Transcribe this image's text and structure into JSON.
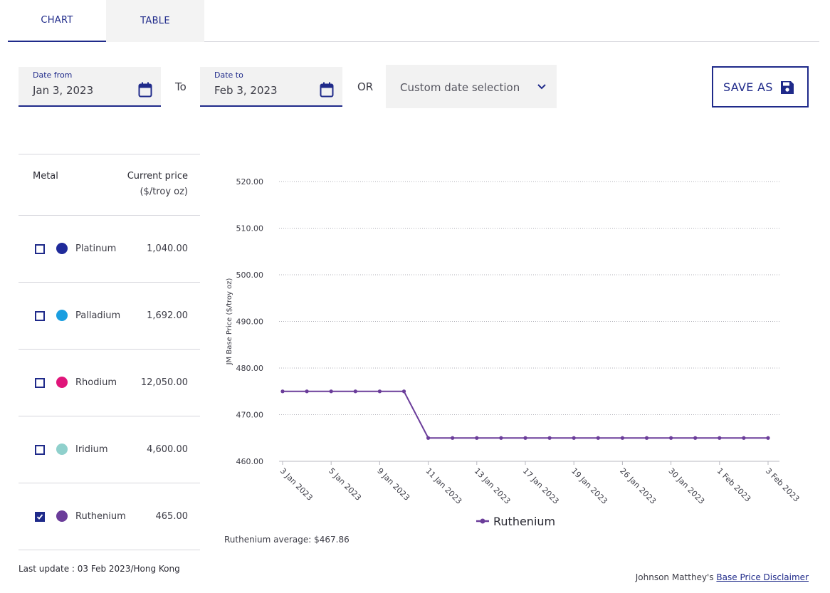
{
  "tabs": [
    {
      "label": "CHART",
      "active": true
    },
    {
      "label": "TABLE",
      "active": false
    }
  ],
  "filters": {
    "date_from": {
      "label": "Date from",
      "value": "Jan 3, 2023"
    },
    "to_label": "To",
    "date_to": {
      "label": "Date to",
      "value": "Feb 3, 2023"
    },
    "or_label": "OR",
    "custom_select": {
      "value": "Custom date selection"
    },
    "save_label": "SAVE AS"
  },
  "metals_table": {
    "header": {
      "metal": "Metal",
      "price": "Current price",
      "unit": "($/troy oz)"
    },
    "rows": [
      {
        "name": "Platinum",
        "price": "1,040.00",
        "color": "#1f2a9a",
        "checked": false
      },
      {
        "name": "Palladium",
        "price": "1,692.00",
        "color": "#1a9ee0",
        "checked": false
      },
      {
        "name": "Rhodium",
        "price": "12,050.00",
        "color": "#e0157a",
        "checked": false
      },
      {
        "name": "Iridium",
        "price": "4,600.00",
        "color": "#8fd0cc",
        "checked": false
      },
      {
        "name": "Ruthenium",
        "price": "465.00",
        "color": "#6b3d9a",
        "checked": true
      }
    ]
  },
  "last_update": "Last update : 03 Feb 2023/Hong Kong",
  "chart_data": {
    "type": "line",
    "ylabel": "JM Base Price ($/troy oz)",
    "ylim": [
      460,
      520
    ],
    "yticks": [
      "460.00",
      "470.00",
      "480.00",
      "490.00",
      "500.00",
      "510.00",
      "520.00"
    ],
    "xtick_labels": [
      "3 Jan 2023",
      "5 Jan 2023",
      "9 Jan 2023",
      "11 Jan 2023",
      "13 Jan 2023",
      "17 Jan 2023",
      "19 Jan 2023",
      "26 Jan 2023",
      "30 Jan 2023",
      "1 Feb 2023",
      "3 Feb 2023"
    ],
    "grid": "horizontal-dotted",
    "legend": "bottom-center",
    "series": [
      {
        "name": "Ruthenium",
        "color": "#6b3d9a",
        "values": [
          475,
          475,
          475,
          475,
          475,
          475,
          465,
          465,
          465,
          465,
          465,
          465,
          465,
          465,
          465,
          465,
          465,
          465,
          465,
          465,
          465
        ]
      }
    ]
  },
  "average_text": "Ruthenium average: $467.86",
  "disclaimer": {
    "prefix": "Johnson Matthey's ",
    "link": "Base Price Disclaimer"
  }
}
